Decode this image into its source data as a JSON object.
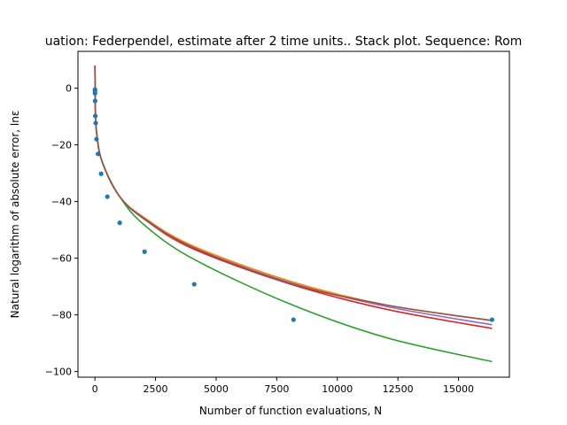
{
  "chart_data": {
    "type": "line",
    "title": "uation: Federpendel, estimate after 2 time units.. Stack plot. Sequence: Rom",
    "xlabel": "Number of function evaluations, N",
    "ylabel": "Natural logarithm of absolute error, lnε",
    "xlim": [
      -700,
      17100
    ],
    "ylim": [
      -102,
      13
    ],
    "xticks": [
      0,
      2500,
      5000,
      7500,
      10000,
      12500,
      15000
    ],
    "xtick_labels": [
      "0",
      "2500",
      "5000",
      "7500",
      "10000",
      "12500",
      "15000"
    ],
    "yticks": [
      0,
      -20,
      -40,
      -60,
      -80,
      -100
    ],
    "ytick_labels": [
      "0",
      "−20",
      "−40",
      "−60",
      "−80",
      "−100"
    ],
    "grid": false,
    "legend": "none",
    "points": {
      "color": "#1f77b4",
      "x": [
        1,
        2,
        4,
        8,
        16,
        32,
        64,
        128,
        256,
        512,
        1024,
        2048,
        4096,
        8192,
        16384
      ],
      "y": [
        -0.5,
        -1.0,
        -1.8,
        -4.5,
        -9.8,
        -12.3,
        -18.0,
        -23.2,
        -30.2,
        -38.3,
        -47.5,
        -57.7,
        -69.2,
        -81.7,
        -81.7
      ]
    },
    "series": [
      {
        "color": "#2ca02c",
        "x": [
          2,
          20,
          80,
          300,
          1000,
          2000,
          4000,
          8000,
          12000,
          16384
        ],
        "y": [
          8.0,
          -8.0,
          -16.5,
          -26.0,
          -38.0,
          -48.0,
          -60.0,
          -76.0,
          -88.0,
          -96.5
        ]
      },
      {
        "color": "#d62728",
        "x": [
          2,
          20,
          80,
          300,
          1000,
          2000,
          4000,
          8000,
          12000,
          16384
        ],
        "y": [
          8.0,
          -8.0,
          -16.5,
          -26.0,
          -38.0,
          -46.0,
          -56.5,
          -69.0,
          -78.0,
          -84.8
        ]
      },
      {
        "color": "#9467bd",
        "x": [
          2,
          20,
          80,
          300,
          1000,
          2000,
          4000,
          8000,
          12000,
          16384
        ],
        "y": [
          8.0,
          -8.0,
          -16.5,
          -26.0,
          -38.0,
          -46.0,
          -56.0,
          -68.5,
          -77.0,
          -83.5
        ]
      },
      {
        "color": "#ff7f0e",
        "x": [
          2,
          20,
          80,
          300,
          1000,
          2000,
          4000,
          8000,
          12000,
          16384
        ],
        "y": [
          8.0,
          -8.0,
          -16.5,
          -26.0,
          -38.0,
          -45.5,
          -55.5,
          -68.0,
          -76.5,
          -82.0
        ]
      },
      {
        "color": "#8c564b",
        "x": [
          2,
          20,
          80,
          300,
          1000,
          2000,
          4000,
          8000,
          12000,
          16384
        ],
        "y": [
          8.0,
          -8.0,
          -16.5,
          -26.0,
          -38.0,
          -45.8,
          -56.0,
          -68.8,
          -76.5,
          -82.0
        ]
      }
    ]
  }
}
